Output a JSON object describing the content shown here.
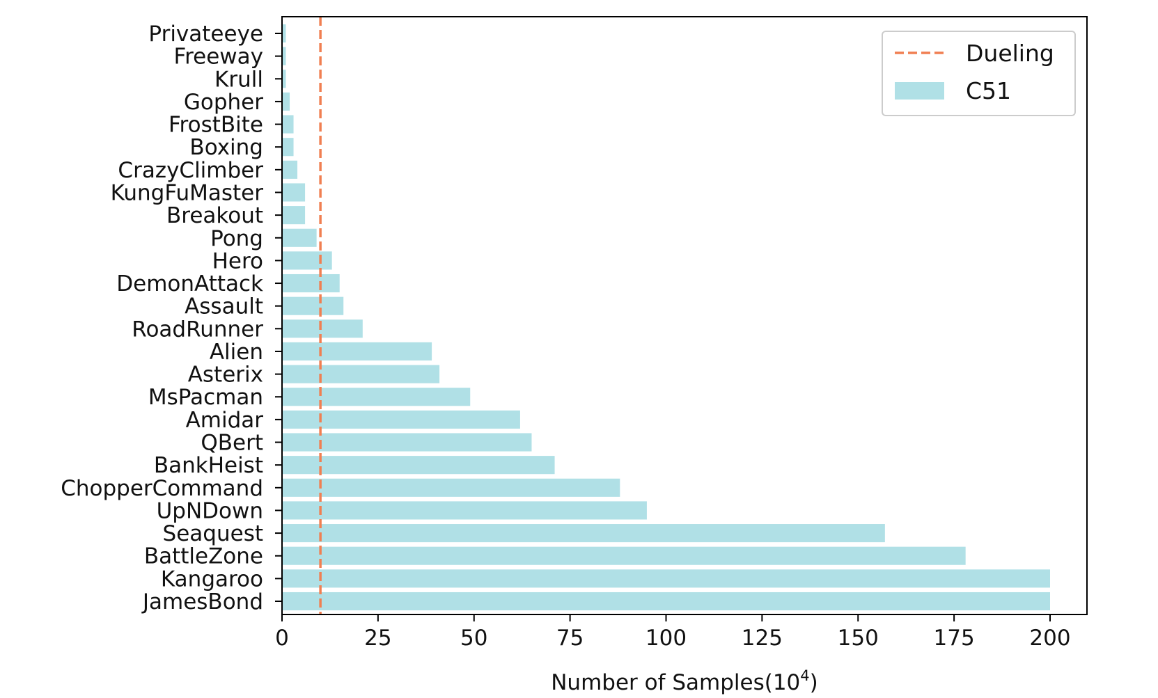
{
  "chart_data": {
    "type": "bar",
    "orientation": "horizontal",
    "xlabel": "Number of Samples(10",
    "xlabel_superscript": "4",
    "xlabel_suffix": ")",
    "xlim": [
      0,
      210
    ],
    "xticks": [
      "0",
      "25",
      "50",
      "75",
      "100",
      "125",
      "150",
      "175",
      "200"
    ],
    "categories": [
      "Privateeye",
      "Freeway",
      "Krull",
      "Gopher",
      "FrostBite",
      "Boxing",
      "CrazyClimber",
      "KungFuMaster",
      "Breakout",
      "Pong",
      "Hero",
      "DemonAttack",
      "Assault",
      "RoadRunner",
      "Alien",
      "Asterix",
      "MsPacman",
      "Amidar",
      "QBert",
      "BankHeist",
      "ChopperCommand",
      "UpNDown",
      "Seaquest",
      "BattleZone",
      "Kangaroo",
      "JamesBond"
    ],
    "series": [
      {
        "name": "C51",
        "kind": "bar",
        "color": "#b0e0e6",
        "values": [
          1,
          1,
          1,
          2,
          3,
          3,
          4,
          6,
          6,
          9,
          13,
          15,
          16,
          21,
          39,
          41,
          49,
          62,
          65,
          71,
          88,
          95,
          157,
          178,
          200,
          200
        ]
      },
      {
        "name": "Dueling",
        "kind": "vline",
        "color": "#f07f52",
        "value": 10
      }
    ],
    "legend": {
      "position": "top-right",
      "entries": [
        "Dueling",
        "C51"
      ]
    },
    "grid": false
  }
}
